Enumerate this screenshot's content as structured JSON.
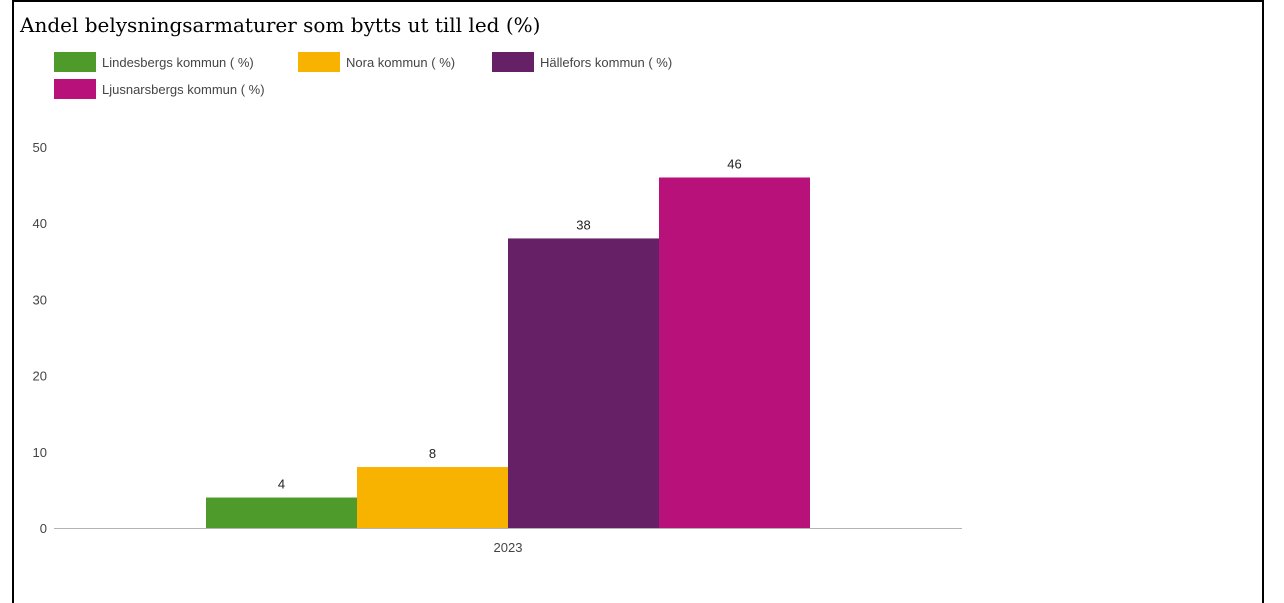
{
  "chart_data": {
    "type": "bar",
    "title": "Andel belysningsarmaturer som bytts ut till led (%)",
    "xlabel": "",
    "ylabel": "",
    "categories": [
      "2023"
    ],
    "series": [
      {
        "name": "Lindesbergs kommun ( %)",
        "values": [
          4
        ],
        "color": "#4e9a2a"
      },
      {
        "name": "Nora kommun ( %)",
        "values": [
          8
        ],
        "color": "#f8b200"
      },
      {
        "name": "Hällefors kommun ( %)",
        "values": [
          38
        ],
        "color": "#662166"
      },
      {
        "name": "Ljusnarsbergs kommun ( %)",
        "values": [
          46
        ],
        "color": "#b8127a"
      }
    ],
    "y_ticks": [
      "0",
      "10",
      "20",
      "30",
      "40",
      "50"
    ],
    "ylim": [
      0,
      50
    ],
    "grid": false,
    "legend_position": "top-left"
  }
}
